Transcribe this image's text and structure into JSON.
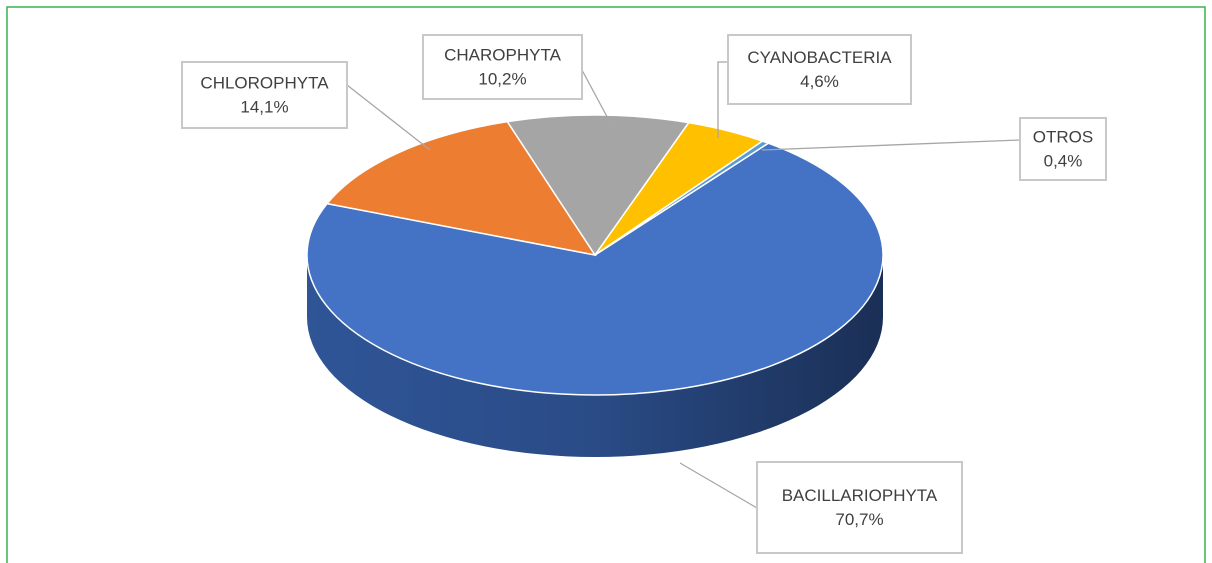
{
  "chart_data": {
    "type": "pie3d",
    "categories": [
      "BACILLARIOPHYTA",
      "CHLOROPHYTA",
      "CHAROPHYTA",
      "CYANOBACTERIA",
      "OTROS"
    ],
    "values": [
      70.7,
      14.1,
      10.2,
      4.6,
      0.4
    ],
    "value_labels": [
      "70,7%",
      "14,1%",
      "10,2%",
      "4,6%",
      "0,4%"
    ],
    "colors": [
      "#4472c4",
      "#ed7d31",
      "#a5a5a5",
      "#ffc000",
      "#5b9bd5"
    ]
  }
}
